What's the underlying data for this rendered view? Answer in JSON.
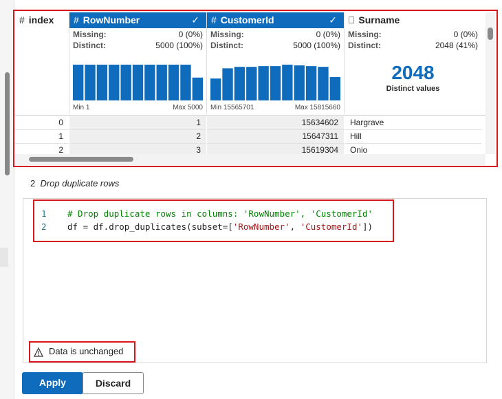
{
  "grid": {
    "labels": {
      "missing": "Missing:",
      "distinct": "Distinct:"
    },
    "columns": [
      {
        "name": "index"
      },
      {
        "name": "RowNumber",
        "missing": "0 (0%)",
        "distinct": "5000 (100%)",
        "hist": [
          470,
          470,
          470,
          470,
          470,
          470,
          470,
          470,
          470,
          470,
          300
        ],
        "min": "Min 1",
        "max": "Max 5000"
      },
      {
        "name": "CustomerId",
        "missing": "0 (0%)",
        "distinct": "5000 (100%)",
        "hist": [
          300,
          440,
          460,
          460,
          470,
          470,
          490,
          480,
          470,
          460,
          320
        ],
        "min": "Min 15565701",
        "max": "Max 15815660"
      },
      {
        "name": "Surname",
        "missing": "0 (0%)",
        "distinct": "2048 (41%)",
        "distinct_count": 2048,
        "distinct_caption": "Distinct values"
      }
    ],
    "rows": [
      [
        0,
        1,
        15634602,
        "Hargrave"
      ],
      [
        1,
        2,
        15647311,
        "Hill"
      ],
      [
        2,
        3,
        15619304,
        "Onio"
      ]
    ]
  },
  "step": {
    "number": "2",
    "title": "Drop duplicate rows"
  },
  "code": [
    {
      "number": "1",
      "tokens": [
        {
          "text": "# Drop duplicate rows in columns: 'RowNumber', 'CustomerId'",
          "kind": "comment"
        }
      ]
    },
    {
      "number": "2",
      "tokens": [
        {
          "text": "df = df.drop_duplicates(subset=[",
          "kind": "plain"
        },
        {
          "text": "'RowNumber'",
          "kind": "string"
        },
        {
          "text": ", ",
          "kind": "plain"
        },
        {
          "text": "'CustomerId'",
          "kind": "string"
        },
        {
          "text": "])",
          "kind": "plain"
        }
      ]
    }
  ],
  "warning": "Data is unchanged",
  "buttons": {
    "apply": "Apply",
    "discard": "Discard"
  }
}
